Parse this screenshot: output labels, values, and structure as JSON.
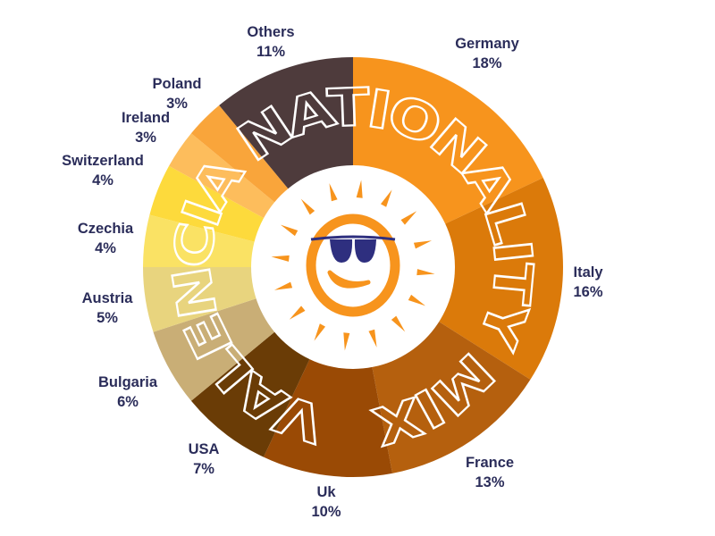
{
  "chart_data": {
    "type": "pie",
    "donut": true,
    "title": "VALENCIA NATIONALITY MIX",
    "unit": "%",
    "slices": [
      {
        "label": "Germany",
        "value": 18,
        "display": "18%",
        "color": "#F7941D"
      },
      {
        "label": "Italy",
        "value": 16,
        "display": "16%",
        "color": "#DB7A0A"
      },
      {
        "label": "France",
        "value": 13,
        "display": "13%",
        "color": "#B5600E"
      },
      {
        "label": "Uk",
        "value": 10,
        "display": "10%",
        "color": "#9A4A05"
      },
      {
        "label": "USA",
        "value": 7,
        "display": "7%",
        "color": "#6A3C06"
      },
      {
        "label": "Bulgaria",
        "value": 6,
        "display": "6%",
        "color": "#C9AE76"
      },
      {
        "label": "Austria",
        "value": 5,
        "display": "5%",
        "color": "#E8D47E"
      },
      {
        "label": "Czechia",
        "value": 4,
        "display": "4%",
        "color": "#FAE264"
      },
      {
        "label": "Switzerland",
        "value": 4,
        "display": "4%",
        "color": "#FDDA3C"
      },
      {
        "label": "Ireland",
        "value": 3,
        "display": "3%",
        "color": "#FDBD5C"
      },
      {
        "label": "Poland",
        "value": 3,
        "display": "3%",
        "color": "#F9A53B"
      },
      {
        "label": "Others",
        "value": 11,
        "display": "11%",
        "color": "#4E3B3C"
      }
    ],
    "start": "top",
    "direction": "clockwise",
    "legend": "none",
    "label_color": "#2B2D5A"
  },
  "logo": {
    "icon": "sun-with-sunglasses-icon",
    "sun_color": "#F7941D",
    "glasses_color": "#2E2F7F"
  }
}
